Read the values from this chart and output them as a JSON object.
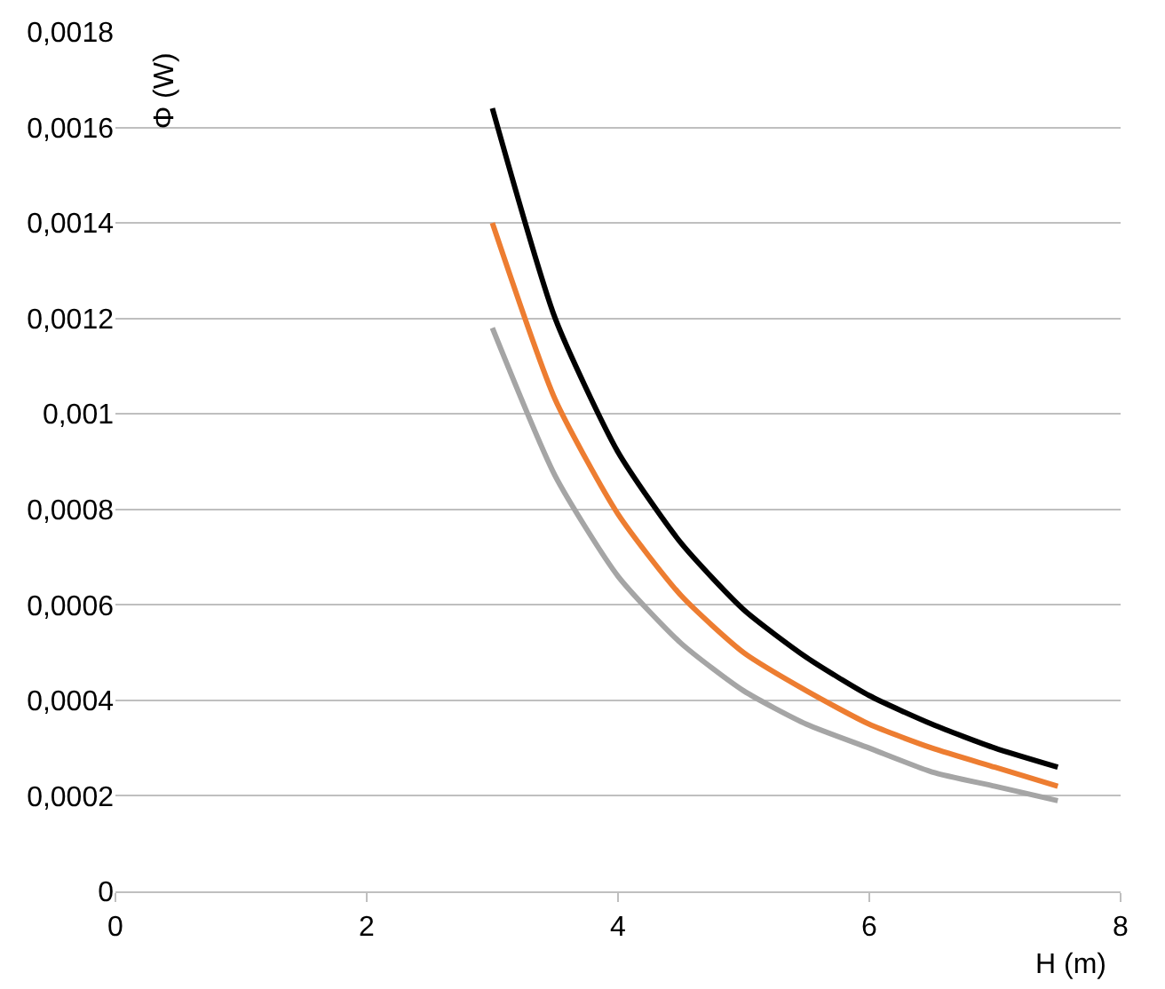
{
  "chart_data": {
    "type": "line",
    "xlabel": "H (m)",
    "ylabel": "Φ (W)",
    "x": [
      3,
      3.5,
      4,
      4.5,
      5,
      5.5,
      6,
      6.5,
      7,
      7.5
    ],
    "series": [
      {
        "color": "#000000",
        "values": [
          0.00164,
          0.0012,
          0.00092,
          0.00073,
          0.00059,
          0.00049,
          0.00041,
          0.00035,
          0.0003,
          0.00026
        ]
      },
      {
        "color": "#ed7d31",
        "values": [
          0.0014,
          0.00103,
          0.00079,
          0.00062,
          0.0005,
          0.00042,
          0.00035,
          0.0003,
          0.00026,
          0.00022
        ]
      },
      {
        "color": "#a5a5a5",
        "values": [
          0.00118,
          0.00087,
          0.00066,
          0.00052,
          0.00042,
          0.00035,
          0.0003,
          0.00025,
          0.00022,
          0.00019
        ]
      }
    ],
    "xlim": [
      0,
      8
    ],
    "xticks": [
      0,
      2,
      4,
      6,
      8
    ],
    "ylim": [
      0,
      0.0018
    ],
    "yticks": [
      0,
      {
        "value": 0.0002,
        "label": "0,0002"
      },
      {
        "value": 0.0004,
        "label": "0,0004"
      },
      {
        "value": 0.0006,
        "label": "0,0006"
      },
      {
        "value": 0.0008,
        "label": "0,0008"
      },
      {
        "value": 0.001,
        "label": "0,001"
      },
      {
        "value": 0.0012,
        "label": "0,0012"
      },
      {
        "value": 0.0014,
        "label": "0,0014"
      },
      {
        "value": 0.0016,
        "label": "0,0016"
      },
      {
        "value": 0.0018,
        "label": "0,0018"
      }
    ],
    "grid": "y",
    "marker": "none",
    "line_style": "solid"
  }
}
